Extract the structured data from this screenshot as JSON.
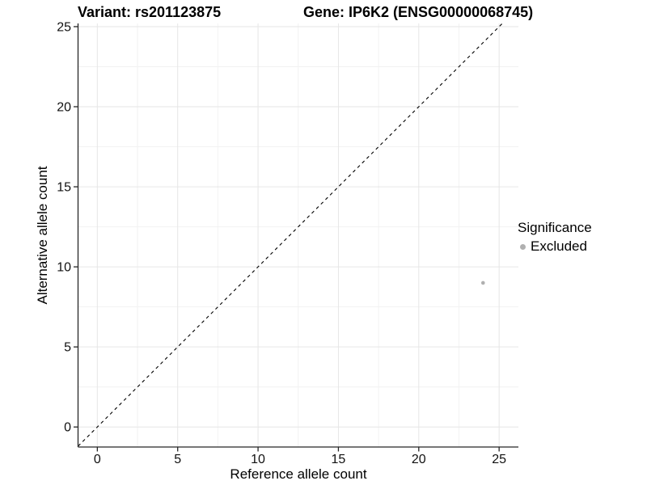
{
  "chart_data": {
    "type": "scatter",
    "title_left": "Variant: rs201123875",
    "title_right": "Gene: IP6K2 (ENSG00000068745)",
    "xlabel": "Reference allele count",
    "ylabel": "Alternative allele count",
    "xlim": [
      -1.2,
      26.2
    ],
    "ylim": [
      -1.25,
      25.2
    ],
    "x_ticks": [
      0,
      5,
      10,
      15,
      20,
      25
    ],
    "y_ticks": [
      0,
      5,
      10,
      15,
      20,
      25
    ],
    "x_minor_ticks": [
      2.5,
      7.5,
      12.5,
      17.5,
      22.5
    ],
    "y_minor_ticks": [
      2.5,
      7.5,
      12.5,
      17.5,
      22.5
    ],
    "grid": true,
    "points": [
      {
        "x": 24,
        "y": 9,
        "series": "Excluded"
      }
    ],
    "reference_line": {
      "type": "identity",
      "slope": 1,
      "intercept": 0,
      "style": "dashed"
    },
    "legend": {
      "title": "Significance",
      "position": "right",
      "items": [
        {
          "label": "Excluded",
          "color": "#b0b0b0"
        }
      ]
    },
    "colors": {
      "point": "#b0b0b0",
      "grid_major": "#e6e6e6",
      "grid_minor": "#f2f2f2",
      "axis": "#262626",
      "tick_text": "#111111",
      "reference_line": "#000000",
      "background": "#ffffff"
    }
  }
}
